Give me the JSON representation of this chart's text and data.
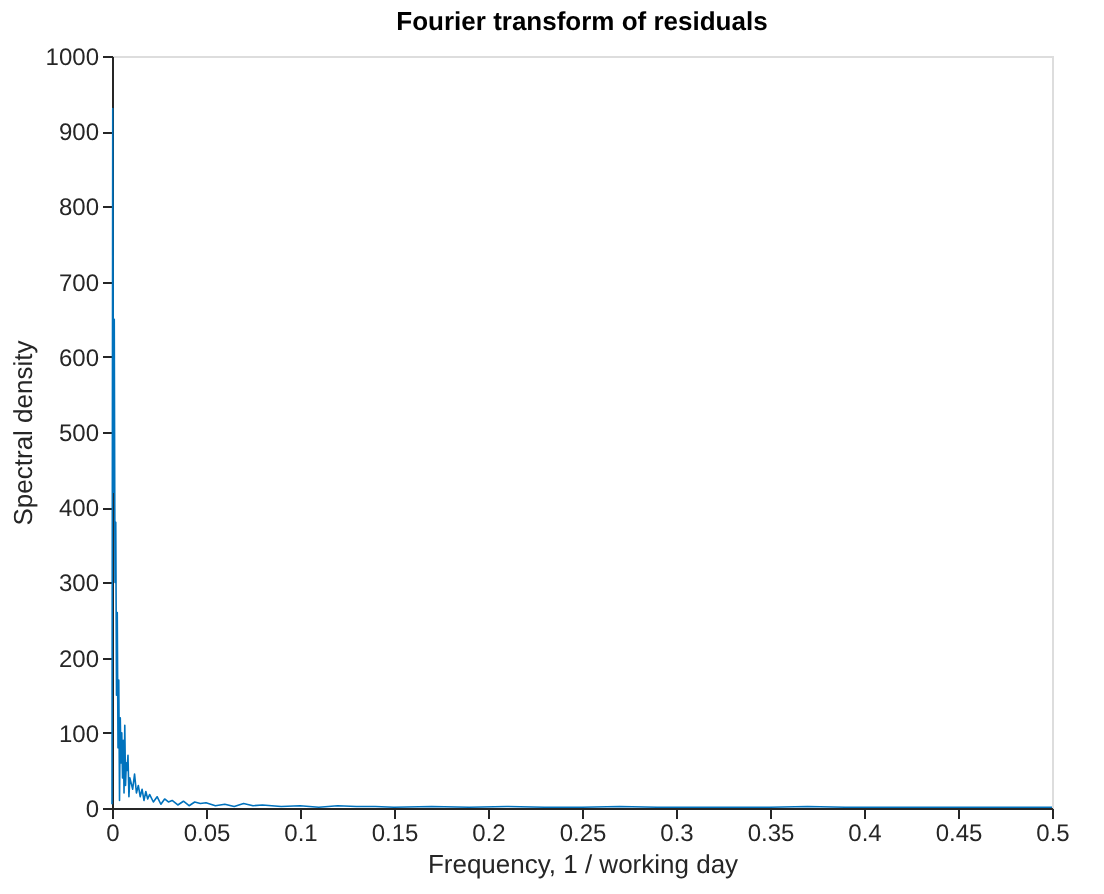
{
  "chart_data": {
    "type": "line",
    "title": "Fourier transform of residuals",
    "xlabel": "Frequency, 1 / working day",
    "ylabel": "Spectral density",
    "xlim": [
      0,
      0.5
    ],
    "ylim": [
      0,
      1000
    ],
    "xticks": [
      0,
      0.05,
      0.1,
      0.15,
      0.2,
      0.25,
      0.3,
      0.35,
      0.4,
      0.45,
      0.5
    ],
    "yticks": [
      0,
      100,
      200,
      300,
      400,
      500,
      600,
      700,
      800,
      900,
      1000
    ],
    "grid": false,
    "line_style": "solid",
    "marker": "none",
    "series": [
      {
        "color": "#0072bd",
        "x": [
          0,
          0.0004,
          0.0008,
          0.0012,
          0.0016,
          0.002,
          0.0024,
          0.0028,
          0.0032,
          0.0036,
          0.004,
          0.0044,
          0.0048,
          0.0052,
          0.0056,
          0.006,
          0.0064,
          0.0068,
          0.0072,
          0.0076,
          0.008,
          0.0085,
          0.009,
          0.0095,
          0.01,
          0.011,
          0.012,
          0.013,
          0.014,
          0.015,
          0.016,
          0.017,
          0.018,
          0.019,
          0.02,
          0.022,
          0.024,
          0.026,
          0.028,
          0.03,
          0.032,
          0.035,
          0.038,
          0.041,
          0.044,
          0.047,
          0.05,
          0.055,
          0.06,
          0.065,
          0.07,
          0.075,
          0.08,
          0.09,
          0.1,
          0.11,
          0.12,
          0.13,
          0.14,
          0.15,
          0.17,
          0.19,
          0.21,
          0.23,
          0.25,
          0.27,
          0.29,
          0.31,
          0.33,
          0.35,
          0.37,
          0.39,
          0.41,
          0.43,
          0.45,
          0.47,
          0.49,
          0.5
        ],
        "values": [
          5,
          930,
          420,
          650,
          300,
          380,
          150,
          260,
          80,
          170,
          10,
          120,
          60,
          100,
          40,
          90,
          20,
          110,
          30,
          60,
          50,
          70,
          15,
          40,
          35,
          25,
          45,
          20,
          30,
          15,
          25,
          10,
          22,
          12,
          18,
          8,
          15,
          5,
          12,
          8,
          10,
          4,
          9,
          3,
          8,
          6,
          7,
          3,
          5,
          2,
          6,
          3,
          4,
          2,
          3,
          1,
          3,
          2,
          2,
          1,
          2,
          1,
          2,
          1,
          1,
          2,
          1,
          1,
          1,
          1,
          2,
          1,
          1,
          1,
          1,
          1,
          1,
          1
        ]
      }
    ]
  }
}
